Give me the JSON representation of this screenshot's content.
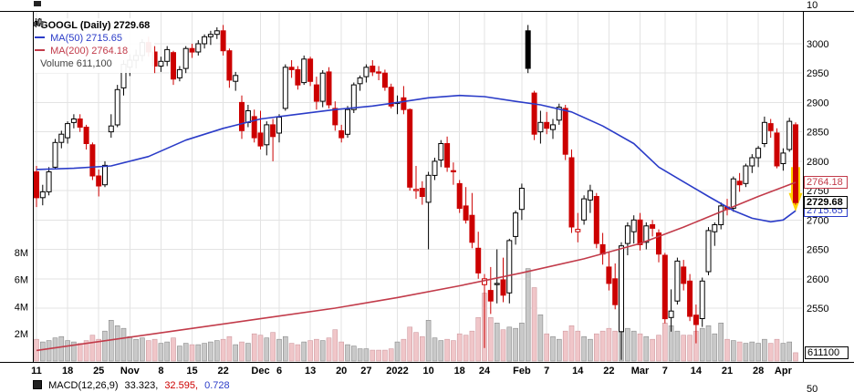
{
  "legend": {
    "symbol": "GOOGL (Daily) 2729.68",
    "ma50": "MA(50) 2715.65",
    "ma200": "MA(200) 2764.18",
    "volume": "Volume 611,100"
  },
  "tags": {
    "ma200": "2764.18",
    "last": "2729.68",
    "ma50": "2715.65",
    "volume": "611100"
  },
  "clipped": {
    "top_right": "10",
    "bottom_right": "50"
  },
  "macd": {
    "label": "MACD(12,26,9)",
    "value1": "33.323,",
    "value2": "32.595,",
    "value3": "0.728"
  },
  "colors": {
    "up": "#000000",
    "down": "#cc0000",
    "ma50": "#2b3cc8",
    "ma200": "#c23b4a",
    "vol_up": "#c9c9c9",
    "vol_up_border": "#8a8a8a",
    "vol_down": "#f0c6c9",
    "vol_down_border": "#cf9aa0",
    "grid": "#e3e3e3",
    "highlight": "#ffd400",
    "axis_text": "#000000",
    "volume_legend": "#444444"
  },
  "chart_data": {
    "type": "candlestick",
    "title": "GOOGL (Daily)",
    "last_close": 2729.68,
    "ma50_last": 2715.65,
    "ma200_last": 2764.18,
    "last_volume": 611100,
    "volume_unit": "millions of shares",
    "y_axis": {
      "ticks": [
        3000,
        2950,
        2900,
        2850,
        2800,
        2750,
        2700,
        2650,
        2600,
        2550
      ]
    },
    "volume_axis": {
      "ticks": [
        {
          "label": "8M",
          "value": 8
        },
        {
          "label": "6M",
          "value": 6
        },
        {
          "label": "4M",
          "value": 4
        },
        {
          "label": "2M",
          "value": 2
        }
      ]
    },
    "x_ticks": [
      {
        "i": 0,
        "l": "11"
      },
      {
        "i": 5,
        "l": "18"
      },
      {
        "i": 10,
        "l": "25"
      },
      {
        "i": 15,
        "l": "Nov",
        "b": true
      },
      {
        "i": 20,
        "l": "8"
      },
      {
        "i": 25,
        "l": "15"
      },
      {
        "i": 30,
        "l": "22"
      },
      {
        "i": 36,
        "l": "Dec",
        "b": true
      },
      {
        "i": 39,
        "l": "6"
      },
      {
        "i": 44,
        "l": "13"
      },
      {
        "i": 49,
        "l": "20"
      },
      {
        "i": 53,
        "l": "27"
      },
      {
        "i": 58,
        "l": "2022",
        "b": true
      },
      {
        "i": 63,
        "l": "10"
      },
      {
        "i": 68,
        "l": "18"
      },
      {
        "i": 72,
        "l": "24"
      },
      {
        "i": 78,
        "l": "Feb",
        "b": true
      },
      {
        "i": 82,
        "l": "7"
      },
      {
        "i": 87,
        "l": "14"
      },
      {
        "i": 92,
        "l": "22"
      },
      {
        "i": 97,
        "l": "Mar",
        "b": true
      },
      {
        "i": 101,
        "l": "7"
      },
      {
        "i": 106,
        "l": "14"
      },
      {
        "i": 111,
        "l": "21"
      },
      {
        "i": 116,
        "l": "28"
      },
      {
        "i": 120,
        "l": "Apr",
        "b": true
      }
    ],
    "candles": [
      [
        "Oct 11",
        2782,
        2792,
        2722,
        2738,
        1.6
      ],
      [
        "Oct 12",
        2738,
        2760,
        2725,
        2748,
        1.4
      ],
      [
        "Oct 13",
        2748,
        2790,
        2742,
        2782,
        1.5
      ],
      [
        "Oct 14",
        2790,
        2838,
        2788,
        2832,
        1.7
      ],
      [
        "Oct 15",
        2832,
        2852,
        2822,
        2846,
        1.8
      ],
      [
        "Oct 18",
        2840,
        2868,
        2830,
        2864,
        1.5
      ],
      [
        "Oct 19",
        2866,
        2880,
        2856,
        2872,
        1.4
      ],
      [
        "Oct 20",
        2872,
        2880,
        2850,
        2858,
        1.3
      ],
      [
        "Oct 21",
        2858,
        2862,
        2820,
        2830,
        1.5
      ],
      [
        "Oct 22",
        2828,
        2832,
        2768,
        2775,
        1.9
      ],
      [
        "Oct 25",
        2775,
        2786,
        2740,
        2758,
        1.6
      ],
      [
        "Oct 26",
        2760,
        2800,
        2756,
        2793,
        2.2
      ],
      [
        "Oct 27",
        2850,
        2880,
        2840,
        2860,
        3.0
      ],
      [
        "Oct 28",
        2862,
        2930,
        2858,
        2922,
        2.6
      ],
      [
        "Oct 29",
        2925,
        2972,
        2912,
        2965,
        2.4
      ],
      [
        "Nov 1",
        2960,
        2982,
        2945,
        2972,
        1.8
      ],
      [
        "Nov 2",
        2972,
        2990,
        2958,
        2980,
        1.6
      ],
      [
        "Nov 3",
        2980,
        3008,
        2970,
        3002,
        1.7
      ],
      [
        "Nov 4",
        3002,
        3012,
        2978,
        2986,
        1.5
      ],
      [
        "Nov 5",
        2986,
        2996,
        2950,
        2962,
        1.6
      ],
      [
        "Nov 8",
        2962,
        2978,
        2952,
        2970,
        1.3
      ],
      [
        "Nov 9",
        2970,
        2996,
        2962,
        2990,
        1.4
      ],
      [
        "Nov 10",
        2985,
        2988,
        2930,
        2940,
        1.7
      ],
      [
        "Nov 11",
        2942,
        2962,
        2936,
        2956,
        1.1
      ],
      [
        "Nov 12",
        2958,
        2996,
        2950,
        2992,
        1.3
      ],
      [
        "Nov 15",
        2992,
        3000,
        2976,
        2986,
        1.2
      ],
      [
        "Nov 16",
        2986,
        3006,
        2980,
        3000,
        1.2
      ],
      [
        "Nov 17",
        3000,
        3016,
        2992,
        3012,
        1.3
      ],
      [
        "Nov 18",
        3012,
        3022,
        2998,
        3016,
        1.4
      ],
      [
        "Nov 19",
        3016,
        3028,
        3008,
        3022,
        1.5
      ],
      [
        "Nov 22",
        3022,
        3032,
        2980,
        2988,
        1.6
      ],
      [
        "Nov 23",
        2988,
        2992,
        2925,
        2938,
        1.8
      ],
      [
        "Nov 24",
        2936,
        2952,
        2920,
        2946,
        1.2
      ],
      [
        "Nov 26",
        2900,
        2912,
        2838,
        2852,
        1.4
      ],
      [
        "Nov 29",
        2866,
        2896,
        2858,
        2886,
        1.3
      ],
      [
        "Nov 30",
        2876,
        2888,
        2832,
        2840,
        2.0
      ],
      [
        "Dec 1",
        2848,
        2886,
        2820,
        2826,
        1.9
      ],
      [
        "Dec 2",
        2828,
        2868,
        2810,
        2862,
        1.7
      ],
      [
        "Dec 3",
        2862,
        2872,
        2800,
        2842,
        2.1
      ],
      [
        "Dec 6",
        2848,
        2880,
        2832,
        2875,
        1.6
      ],
      [
        "Dec 7",
        2890,
        2965,
        2886,
        2960,
        1.8
      ],
      [
        "Dec 8",
        2960,
        2972,
        2942,
        2956,
        1.3
      ],
      [
        "Dec 9",
        2956,
        2962,
        2922,
        2930,
        1.2
      ],
      [
        "Dec 10",
        2934,
        2980,
        2930,
        2974,
        1.4
      ],
      [
        "Dec 13",
        2974,
        2978,
        2928,
        2936,
        1.5
      ],
      [
        "Dec 14",
        2930,
        2944,
        2888,
        2902,
        1.6
      ],
      [
        "Dec 15",
        2902,
        2955,
        2892,
        2950,
        1.5
      ],
      [
        "Dec 16",
        2952,
        2960,
        2890,
        2896,
        1.7
      ],
      [
        "Dec 17",
        2890,
        2902,
        2852,
        2862,
        2.3
      ],
      [
        "Dec 20",
        2852,
        2862,
        2832,
        2840,
        1.4
      ],
      [
        "Dec 21",
        2846,
        2894,
        2840,
        2888,
        1.2
      ],
      [
        "Dec 22",
        2888,
        2934,
        2882,
        2930,
        1.1
      ],
      [
        "Dec 23",
        2932,
        2946,
        2920,
        2942,
        0.9
      ],
      [
        "Dec 27",
        2944,
        2965,
        2934,
        2960,
        0.9
      ],
      [
        "Dec 28",
        2962,
        2972,
        2945,
        2952,
        0.8
      ],
      [
        "Dec 29",
        2952,
        2962,
        2938,
        2950,
        0.8
      ],
      [
        "Dec 30",
        2950,
        2956,
        2920,
        2926,
        0.8
      ],
      [
        "Dec 31",
        2926,
        2932,
        2890,
        2894,
        0.9
      ],
      [
        "Jan 3",
        2900,
        2912,
        2880,
        2900,
        1.4
      ],
      [
        "Jan 4",
        2908,
        2928,
        2880,
        2888,
        1.6
      ],
      [
        "Jan 5",
        2888,
        2890,
        2750,
        2756,
        2.5
      ],
      [
        "Jan 6",
        2750,
        2792,
        2736,
        2752,
        2.1
      ],
      [
        "Jan 7",
        2754,
        2766,
        2726,
        2740,
        1.8
      ],
      [
        "Jan 10",
        2730,
        2782,
        2650,
        2776,
        3.0
      ],
      [
        "Jan 11",
        2776,
        2806,
        2768,
        2800,
        1.7
      ],
      [
        "Jan 12",
        2802,
        2836,
        2790,
        2830,
        1.5
      ],
      [
        "Jan 13",
        2830,
        2842,
        2782,
        2790,
        1.6
      ],
      [
        "Jan 14",
        2784,
        2798,
        2760,
        2782,
        1.5
      ],
      [
        "Jan 18",
        2762,
        2768,
        2712,
        2720,
        2.0
      ],
      [
        "Jan 19",
        2724,
        2756,
        2694,
        2700,
        1.9
      ],
      [
        "Jan 20",
        2708,
        2746,
        2652,
        2662,
        2.2
      ],
      [
        "Jan 21",
        2652,
        2680,
        2600,
        2610,
        3.2
      ],
      [
        "Jan 24",
        2590,
        2608,
        2482,
        2600,
        5.0
      ],
      [
        "Jan 25",
        2580,
        2620,
        2540,
        2562,
        3.2
      ],
      [
        "Jan 26",
        2590,
        2650,
        2558,
        2592,
        2.8
      ],
      [
        "Jan 27",
        2598,
        2636,
        2560,
        2572,
        2.3
      ],
      [
        "Jan 28",
        2576,
        2668,
        2558,
        2665,
        2.5
      ],
      [
        "Jan 31",
        2672,
        2716,
        2658,
        2712,
        2.4
      ],
      [
        "Feb 1",
        2718,
        2762,
        2700,
        2754,
        2.8
      ],
      [
        "Feb 2",
        3022,
        3032,
        2950,
        2958,
        6.8
      ],
      [
        "Feb 3",
        2916,
        2920,
        2836,
        2846,
        5.4
      ],
      [
        "Feb 4",
        2850,
        2886,
        2830,
        2866,
        3.4
      ],
      [
        "Feb 7",
        2866,
        2884,
        2846,
        2856,
        2.0
      ],
      [
        "Feb 8",
        2854,
        2872,
        2838,
        2862,
        1.8
      ],
      [
        "Feb 9",
        2870,
        2898,
        2862,
        2892,
        1.6
      ],
      [
        "Feb 10",
        2890,
        2896,
        2802,
        2812,
        2.2
      ],
      [
        "Feb 11",
        2806,
        2820,
        2678,
        2688,
        2.6
      ],
      [
        "Feb 14",
        2680,
        2712,
        2662,
        2684,
        2.2
      ],
      [
        "Feb 15",
        2700,
        2742,
        2692,
        2736,
        1.8
      ],
      [
        "Feb 16",
        2734,
        2760,
        2712,
        2750,
        1.6
      ],
      [
        "Feb 17",
        2740,
        2746,
        2652,
        2660,
        2.0
      ],
      [
        "Feb 18",
        2658,
        2678,
        2624,
        2642,
        2.2
      ],
      [
        "Feb 22",
        2620,
        2646,
        2580,
        2592,
        2.4
      ],
      [
        "Feb 23",
        2600,
        2626,
        2548,
        2556,
        2.2
      ],
      [
        "Feb 24",
        2510,
        2662,
        2462,
        2656,
        4.2
      ],
      [
        "Feb 25",
        2660,
        2696,
        2640,
        2690,
        2.4
      ],
      [
        "Feb 28",
        2680,
        2708,
        2660,
        2700,
        2.2
      ],
      [
        "Mar 1",
        2700,
        2712,
        2648,
        2658,
        2.0
      ],
      [
        "Mar 2",
        2662,
        2696,
        2650,
        2690,
        1.8
      ],
      [
        "Mar 3",
        2692,
        2700,
        2672,
        2686,
        1.6
      ],
      [
        "Mar 4",
        2678,
        2684,
        2628,
        2642,
        1.9
      ],
      [
        "Mar 7",
        2640,
        2644,
        2524,
        2532,
        2.8
      ],
      [
        "Mar 8",
        2534,
        2582,
        2510,
        2545,
        2.6
      ],
      [
        "Mar 9",
        2562,
        2636,
        2556,
        2630,
        2.2
      ],
      [
        "Mar 10",
        2620,
        2632,
        2580,
        2592,
        1.9
      ],
      [
        "Mar 11",
        2596,
        2608,
        2528,
        2536,
        1.9
      ],
      [
        "Mar 14",
        2538,
        2556,
        2490,
        2522,
        2.2
      ],
      [
        "Mar 15",
        2532,
        2602,
        2518,
        2596,
        2.4
      ],
      [
        "Mar 16",
        2612,
        2688,
        2606,
        2682,
        2.6
      ],
      [
        "Mar 17",
        2680,
        2696,
        2656,
        2692,
        2.0
      ],
      [
        "Mar 18",
        2692,
        2730,
        2684,
        2724,
        2.8
      ],
      [
        "Mar 21",
        2722,
        2736,
        2708,
        2718,
        1.6
      ],
      [
        "Mar 22",
        2720,
        2774,
        2714,
        2770,
        1.5
      ],
      [
        "Mar 23",
        2766,
        2780,
        2748,
        2760,
        1.4
      ],
      [
        "Mar 24",
        2762,
        2796,
        2756,
        2792,
        1.3
      ],
      [
        "Mar 25",
        2792,
        2812,
        2780,
        2806,
        1.4
      ],
      [
        "Mar 28",
        2806,
        2826,
        2790,
        2822,
        1.3
      ],
      [
        "Mar 29",
        2830,
        2876,
        2824,
        2866,
        1.6
      ],
      [
        "Mar 30",
        2864,
        2872,
        2840,
        2852,
        1.3
      ],
      [
        "Mar 31",
        2848,
        2856,
        2788,
        2792,
        1.6
      ],
      [
        "Apr 1",
        2796,
        2822,
        2784,
        2814,
        1.3
      ],
      [
        "Apr 4",
        2820,
        2874,
        2816,
        2868,
        1.4
      ],
      [
        "Apr 5",
        2862,
        2866,
        2726,
        2729.68,
        0.6111
      ]
    ],
    "ma50_keypoints": [
      [
        0,
        2786
      ],
      [
        6,
        2788
      ],
      [
        12,
        2792
      ],
      [
        18,
        2808
      ],
      [
        24,
        2836
      ],
      [
        30,
        2856
      ],
      [
        36,
        2872
      ],
      [
        42,
        2880
      ],
      [
        48,
        2888
      ],
      [
        54,
        2894
      ],
      [
        58,
        2900
      ],
      [
        63,
        2908
      ],
      [
        68,
        2912
      ],
      [
        72,
        2910
      ],
      [
        77,
        2902
      ],
      [
        81,
        2896
      ],
      [
        86,
        2884
      ],
      [
        91,
        2860
      ],
      [
        96,
        2830
      ],
      [
        100,
        2790
      ],
      [
        104,
        2765
      ],
      [
        108,
        2740
      ],
      [
        112,
        2716
      ],
      [
        115,
        2703
      ],
      [
        118,
        2697
      ],
      [
        120,
        2700
      ],
      [
        122,
        2715.65
      ]
    ],
    "ma200_keypoints": [
      [
        0,
        2478
      ],
      [
        12,
        2496
      ],
      [
        24,
        2514
      ],
      [
        36,
        2532
      ],
      [
        48,
        2550
      ],
      [
        58,
        2568
      ],
      [
        68,
        2588
      ],
      [
        78,
        2610
      ],
      [
        88,
        2634
      ],
      [
        97,
        2660
      ],
      [
        104,
        2688
      ],
      [
        110,
        2714
      ],
      [
        116,
        2740
      ],
      [
        122,
        2764.18
      ]
    ]
  }
}
